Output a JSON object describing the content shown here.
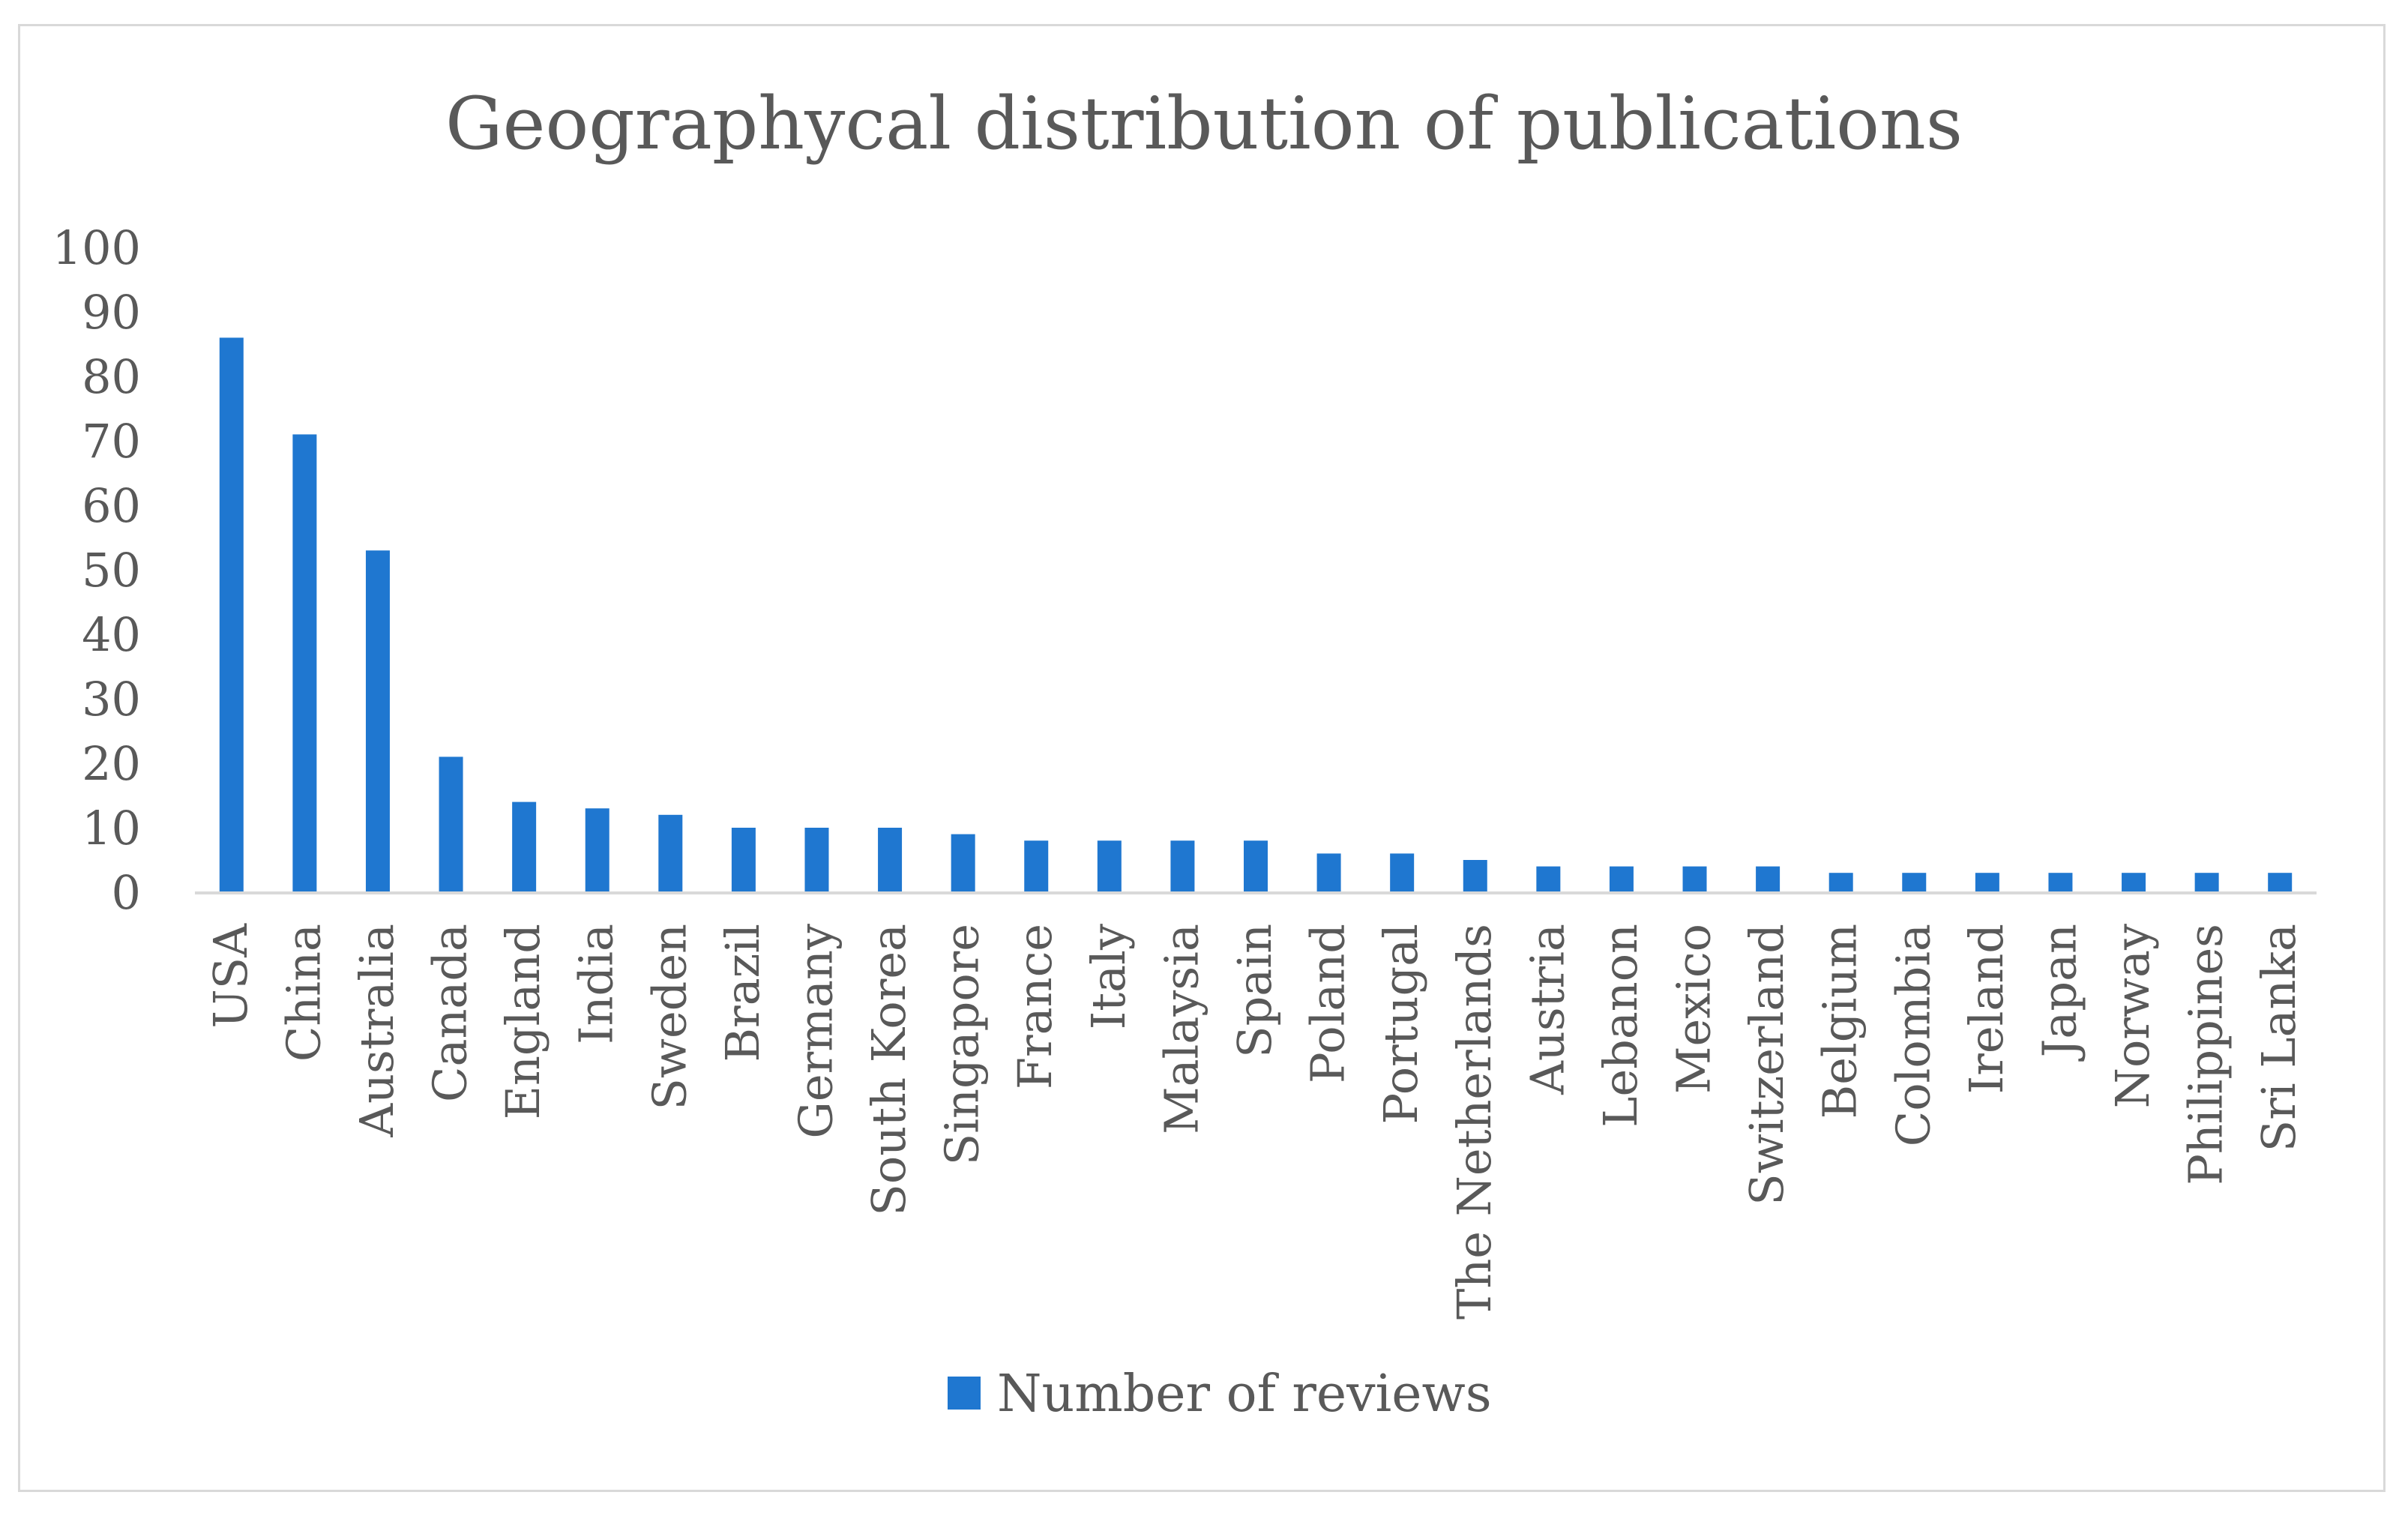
{
  "chart_data": {
    "type": "bar",
    "title": "Geographycal distribution of publications",
    "xlabel": "",
    "ylabel": "",
    "ylim": [
      0,
      100
    ],
    "yticks": [
      0,
      10,
      20,
      30,
      40,
      50,
      60,
      70,
      80,
      90,
      100
    ],
    "grid": false,
    "legend_position": "bottom",
    "bar_color": "#1f77d0",
    "categories": [
      "USA",
      "China",
      "Australia",
      "Canada",
      "England",
      "India",
      "Sweden",
      "Brazil",
      "Germany",
      "South Korea",
      "Singapore",
      "France",
      "Italy",
      "Malaysia",
      "Spain",
      "Poland",
      "Portugal",
      "The Netherlands",
      "Austria",
      "Lebanon",
      "Mexico",
      "Switzerland",
      "Belgium",
      "Colombia",
      "Ireland",
      "Japan",
      "Norway",
      "Philippines",
      "Sri Lanka"
    ],
    "series": [
      {
        "name": "Number of reviews",
        "values": [
          86,
          71,
          53,
          21,
          14,
          13,
          12,
          10,
          10,
          10,
          9,
          8,
          8,
          8,
          8,
          6,
          6,
          5,
          4,
          4,
          4,
          4,
          3,
          3,
          3,
          3,
          3,
          3,
          3
        ]
      }
    ]
  }
}
